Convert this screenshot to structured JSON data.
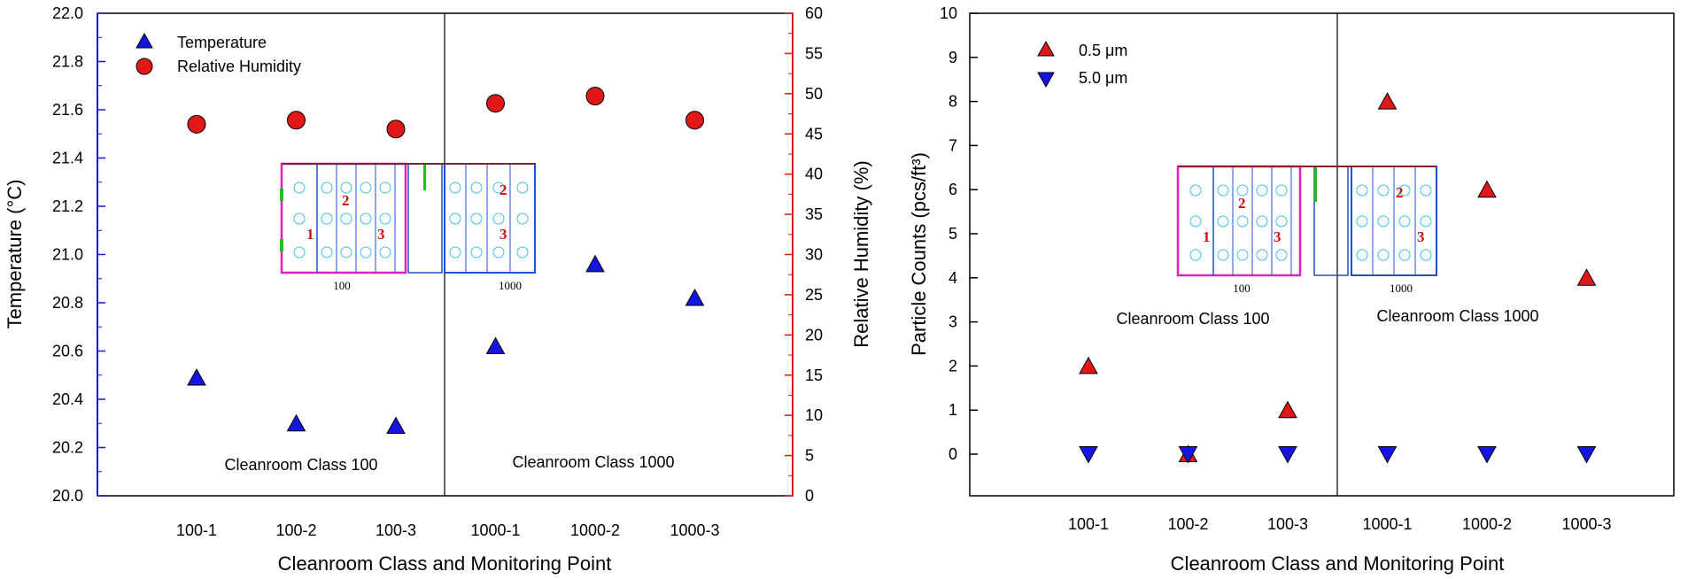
{
  "colors": {
    "temperature": "#1515e0",
    "humidity": "#e01818",
    "left_axis": "#1515e0",
    "right_axis": "#e01818",
    "axis": "#000000"
  },
  "chart_data": [
    {
      "type": "scatter",
      "categories": [
        "100-1",
        "100-2",
        "100-3",
        "1000-1",
        "1000-2",
        "1000-3"
      ],
      "xlabel": "Cleanroom Class and Monitoring Point",
      "ylabel": "Temperature (°C)",
      "ylabel_right": "Relative Humidity (%)",
      "ylim": [
        20.0,
        22.0
      ],
      "ylim_right": [
        0,
        60
      ],
      "yticks": [
        "20.0",
        "20.2",
        "20.4",
        "20.6",
        "20.8",
        "21.0",
        "21.2",
        "21.4",
        "21.6",
        "21.8",
        "22.0"
      ],
      "yticks_right": [
        "0",
        "5",
        "10",
        "15",
        "20",
        "25",
        "30",
        "35",
        "40",
        "45",
        "50",
        "55",
        "60"
      ],
      "legend_position": "top-left",
      "series": [
        {
          "name": "Temperature",
          "marker": "triangle-up",
          "color": "#1515e0",
          "axis": "left",
          "values": [
            20.49,
            20.3,
            20.29,
            20.62,
            20.96,
            20.82
          ]
        },
        {
          "name": "Relative Humidity",
          "marker": "circle",
          "color": "#e01818",
          "axis": "right",
          "values": [
            46.2,
            46.7,
            45.6,
            48.8,
            49.7,
            46.7
          ]
        }
      ],
      "annotations": [
        "Cleanroom Class 100",
        "Cleanroom Class 1000"
      ],
      "divider_after_category": "100-3",
      "inset": {
        "labels": [
          "100",
          "1000"
        ],
        "zone_numbers": [
          "1",
          "2",
          "3",
          "2",
          "3"
        ]
      }
    },
    {
      "type": "scatter",
      "categories": [
        "100-1",
        "100-2",
        "100-3",
        "1000-1",
        "1000-2",
        "1000-3"
      ],
      "xlabel": "Cleanroom Class and Monitoring Point",
      "ylabel": "Particle Counts (pcs/ft³)",
      "ylim": [
        -1,
        10
      ],
      "yticks": [
        "0",
        "1",
        "2",
        "3",
        "4",
        "5",
        "6",
        "7",
        "8",
        "9",
        "10"
      ],
      "legend_position": "top-left",
      "series": [
        {
          "name": "0.5 μm",
          "marker": "triangle-up",
          "color": "#e01818",
          "values": [
            2,
            0,
            1,
            8,
            6,
            4
          ]
        },
        {
          "name": "5.0 μm",
          "marker": "triangle-down",
          "color": "#1515e0",
          "values": [
            0,
            0,
            0,
            0,
            0,
            0
          ]
        }
      ],
      "annotations": [
        "Cleanroom Class 100",
        "Cleanroom Class 1000"
      ],
      "divider_after_category": "100-3",
      "inset": {
        "labels": [
          "100",
          "1000"
        ],
        "zone_numbers": [
          "2",
          "1",
          "3",
          "2",
          "3"
        ]
      }
    }
  ]
}
